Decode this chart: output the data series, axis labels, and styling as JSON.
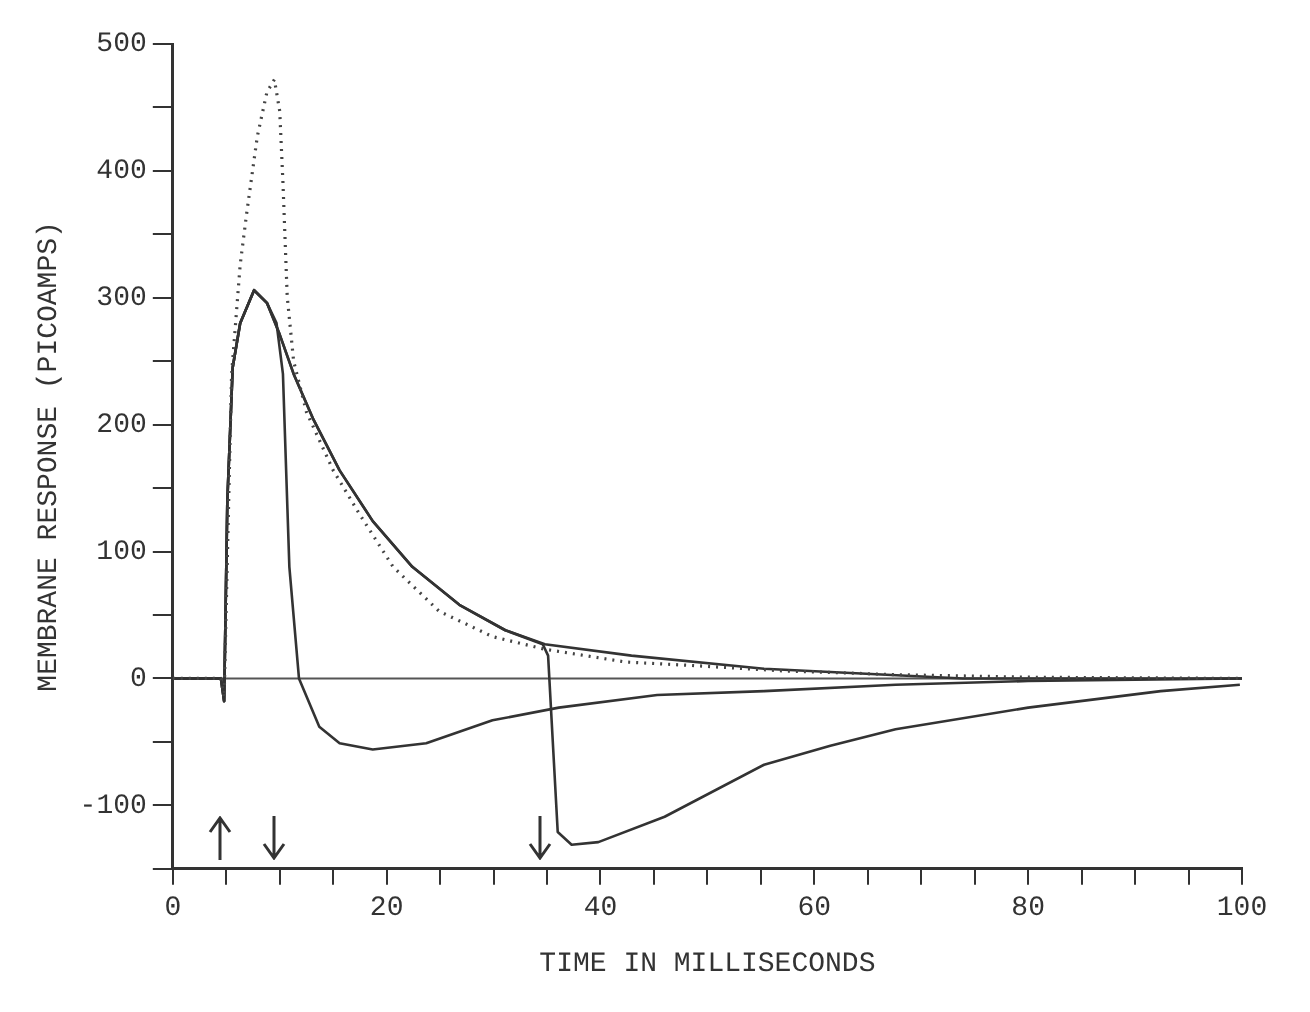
{
  "chart_data": {
    "type": "line",
    "xlabel": "TIME IN MILLISECONDS",
    "ylabel": "MEMBRANE RESPONSE (PICOAMPS)",
    "xlim": [
      0,
      100
    ],
    "ylim": [
      -150,
      500
    ],
    "xticks": [
      0,
      {
        "value": 5,
        "label": null
      },
      {
        "value": 10,
        "label": null
      },
      {
        "value": 15,
        "label": null
      },
      20,
      {
        "value": 25,
        "label": null
      },
      {
        "value": 30,
        "label": null
      },
      {
        "value": 35,
        "label": null
      },
      40,
      {
        "value": 45,
        "label": null
      },
      {
        "value": 50,
        "label": null
      },
      {
        "value": 55,
        "label": null
      },
      60,
      {
        "value": 65,
        "label": null
      },
      {
        "value": 70,
        "label": null
      },
      {
        "value": 75,
        "label": null
      },
      80,
      {
        "value": 85,
        "label": null
      },
      {
        "value": 90,
        "label": null
      },
      {
        "value": 95,
        "label": null
      },
      100
    ],
    "yticks": [
      {
        "value": -150,
        "label": null
      },
      -100,
      {
        "value": -50,
        "label": null
      },
      0,
      {
        "value": 50,
        "label": null
      },
      100,
      {
        "value": 150,
        "label": null
      },
      200,
      {
        "value": 250,
        "label": null
      },
      300,
      {
        "value": 350,
        "label": null
      },
      400,
      {
        "value": 450,
        "label": null
      },
      500
    ],
    "grid": false,
    "legend": false,
    "marker": "none",
    "ref_lines": [
      {
        "axis": "y",
        "value": 0,
        "color": "#555555"
      }
    ],
    "series": [
      {
        "color": "#444444",
        "line_style": "dotted",
        "x": [
          0,
          4.5,
          4.8,
          5.5,
          6.3,
          6.9,
          7.9,
          8.8,
          9.5,
          10,
          10.3,
          10.7,
          11.3,
          12.5,
          15,
          17.5,
          20.6,
          24.9,
          29.9,
          34.8,
          42.3,
          49,
          57,
          67.6,
          80,
          100
        ],
        "values": [
          0,
          0,
          -15,
          240,
          326,
          366,
          427,
          462,
          472,
          447,
          391,
          301,
          250,
          210,
          164,
          129,
          88,
          53,
          33,
          23,
          13,
          10,
          6,
          3,
          1,
          0
        ]
      },
      {
        "color": "#333333",
        "x": [
          0,
          4.5,
          4.8,
          5.1,
          5.6,
          6.3,
          7.6,
          8.8,
          10,
          11.3,
          13.1,
          15.6,
          18.7,
          22.4,
          26.8,
          31.1,
          34.8,
          42.9,
          55.3,
          73.9,
          100
        ],
        "values": [
          0,
          0,
          -18,
          140,
          245,
          280,
          306,
          296,
          271,
          240,
          205,
          164,
          124,
          88,
          58,
          38,
          27,
          18,
          7.6,
          0,
          0
        ]
      },
      {
        "color": "#333333",
        "x": [
          0,
          4.5,
          4.8,
          5.1,
          5.6,
          6.3,
          7.6,
          8.8,
          9.7,
          10.3,
          10.9,
          11.8,
          13.7,
          15.6,
          18.7,
          23.7,
          29.9,
          36.1,
          45.3,
          55.3,
          67.6,
          80,
          100
        ],
        "values": [
          0,
          0,
          -18,
          140,
          245,
          280,
          306,
          296,
          280,
          240,
          88,
          0,
          -38,
          -51,
          -56,
          -51,
          -33,
          -23,
          -13,
          -10,
          -5,
          -2,
          0
        ]
      },
      {
        "color": "#333333",
        "x": [
          0,
          4.5,
          4.8,
          5.1,
          5.6,
          6.3,
          7.6,
          8.8,
          10,
          11.3,
          13.1,
          15.6,
          18.7,
          22.4,
          26.8,
          31.1,
          34.6,
          35.1,
          36,
          37.3,
          39.8,
          46,
          55.3,
          61.5,
          67.6,
          80,
          92.4,
          99.8
        ],
        "values": [
          0,
          0,
          -18,
          140,
          245,
          280,
          306,
          296,
          271,
          240,
          205,
          164,
          124,
          88,
          58,
          38,
          27,
          18,
          -121,
          -131,
          -129,
          -109,
          -68,
          -53,
          -40,
          -23,
          -10,
          -5
        ]
      }
    ]
  }
}
